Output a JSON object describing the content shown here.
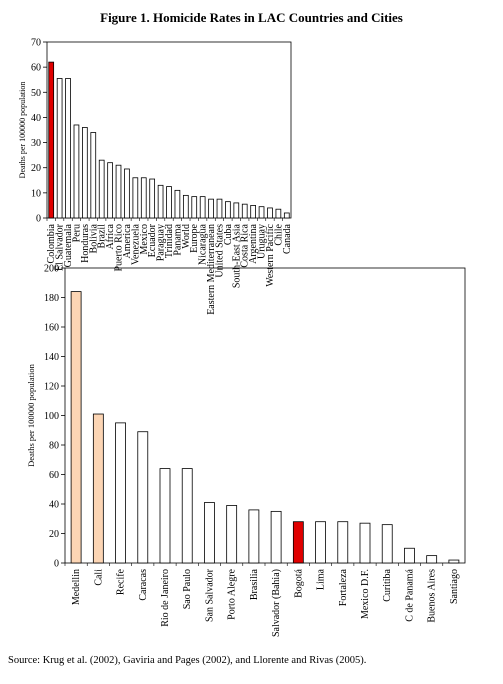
{
  "figure_title": "Figure 1. Homicide Rates in LAC Countries and Cities",
  "source_note": "Source: Krug et al. (2002), Gaviria and Pages (2002), and Llorente and Rivas (2005).",
  "colors": {
    "highlight": "#e00000",
    "highlight_light": "#fcd5b4",
    "default": "#ffffff",
    "stroke": "#000000"
  },
  "chart_data": [
    {
      "type": "bar",
      "title": "",
      "xlabel": "",
      "ylabel": "Deaths per 100000 population",
      "ylim": [
        0,
        70
      ],
      "yticks": [
        0,
        10,
        20,
        30,
        40,
        50,
        60,
        70
      ],
      "grid": false,
      "categories": [
        "Colombia",
        "El Salvador",
        "Guatemala",
        "Peru",
        "Honduras",
        "Bolivia",
        "Brazil",
        "Africa",
        "Puerto Rico",
        "America",
        "Venezuela",
        "Mexico",
        "Ecuador",
        "Paraguay",
        "Trinidad",
        "Panama",
        "World",
        "Europe",
        "Nicaragua",
        "Eastern Mediterranean",
        "United States",
        "Cuba",
        "South-East Asia",
        "Costa Rica",
        "Argentina",
        "Uruguay",
        "Western Pacific",
        "Chile",
        "Canada"
      ],
      "values": [
        62,
        55.5,
        55.5,
        37,
        36,
        34,
        23,
        22,
        21,
        19.5,
        16,
        16,
        15.5,
        13,
        12.5,
        11,
        9,
        8.5,
        8.5,
        7.5,
        7.5,
        6.5,
        6,
        5.5,
        5,
        4.5,
        4,
        3.5,
        2
      ],
      "bar_colors": [
        "#e00000",
        "#ffffff",
        "#ffffff",
        "#ffffff",
        "#ffffff",
        "#ffffff",
        "#ffffff",
        "#ffffff",
        "#ffffff",
        "#ffffff",
        "#ffffff",
        "#ffffff",
        "#ffffff",
        "#ffffff",
        "#ffffff",
        "#ffffff",
        "#ffffff",
        "#ffffff",
        "#ffffff",
        "#ffffff",
        "#ffffff",
        "#ffffff",
        "#ffffff",
        "#ffffff",
        "#ffffff",
        "#ffffff",
        "#ffffff",
        "#ffffff",
        "#ffffff"
      ]
    },
    {
      "type": "bar",
      "title": "",
      "xlabel": "",
      "ylabel": "Deaths per 100000 population",
      "ylim": [
        0,
        200
      ],
      "yticks": [
        0,
        20,
        40,
        60,
        80,
        100,
        120,
        140,
        160,
        180,
        200
      ],
      "grid": false,
      "categories": [
        "Medellin",
        "Cali",
        "Recife",
        "Caracas",
        "Rio de Janeiro",
        "Sao Paulo",
        "San Salvador",
        "Porto Alegre",
        "Brasilia",
        "Salvador (Bahia)",
        "Bogotá",
        "Lima",
        "Fortaleza",
        "Mexico D.F.",
        "Curitiba",
        "C de Panamá",
        "Buenos Aires",
        "Santiago"
      ],
      "values": [
        184,
        101,
        95,
        89,
        64,
        64,
        41,
        39,
        36,
        35,
        28,
        28,
        28,
        27,
        26,
        10,
        5,
        2
      ],
      "bar_colors": [
        "#fcd5b4",
        "#fcd5b4",
        "#ffffff",
        "#ffffff",
        "#ffffff",
        "#ffffff",
        "#ffffff",
        "#ffffff",
        "#ffffff",
        "#ffffff",
        "#e00000",
        "#ffffff",
        "#ffffff",
        "#ffffff",
        "#ffffff",
        "#ffffff",
        "#ffffff",
        "#ffffff"
      ]
    }
  ]
}
